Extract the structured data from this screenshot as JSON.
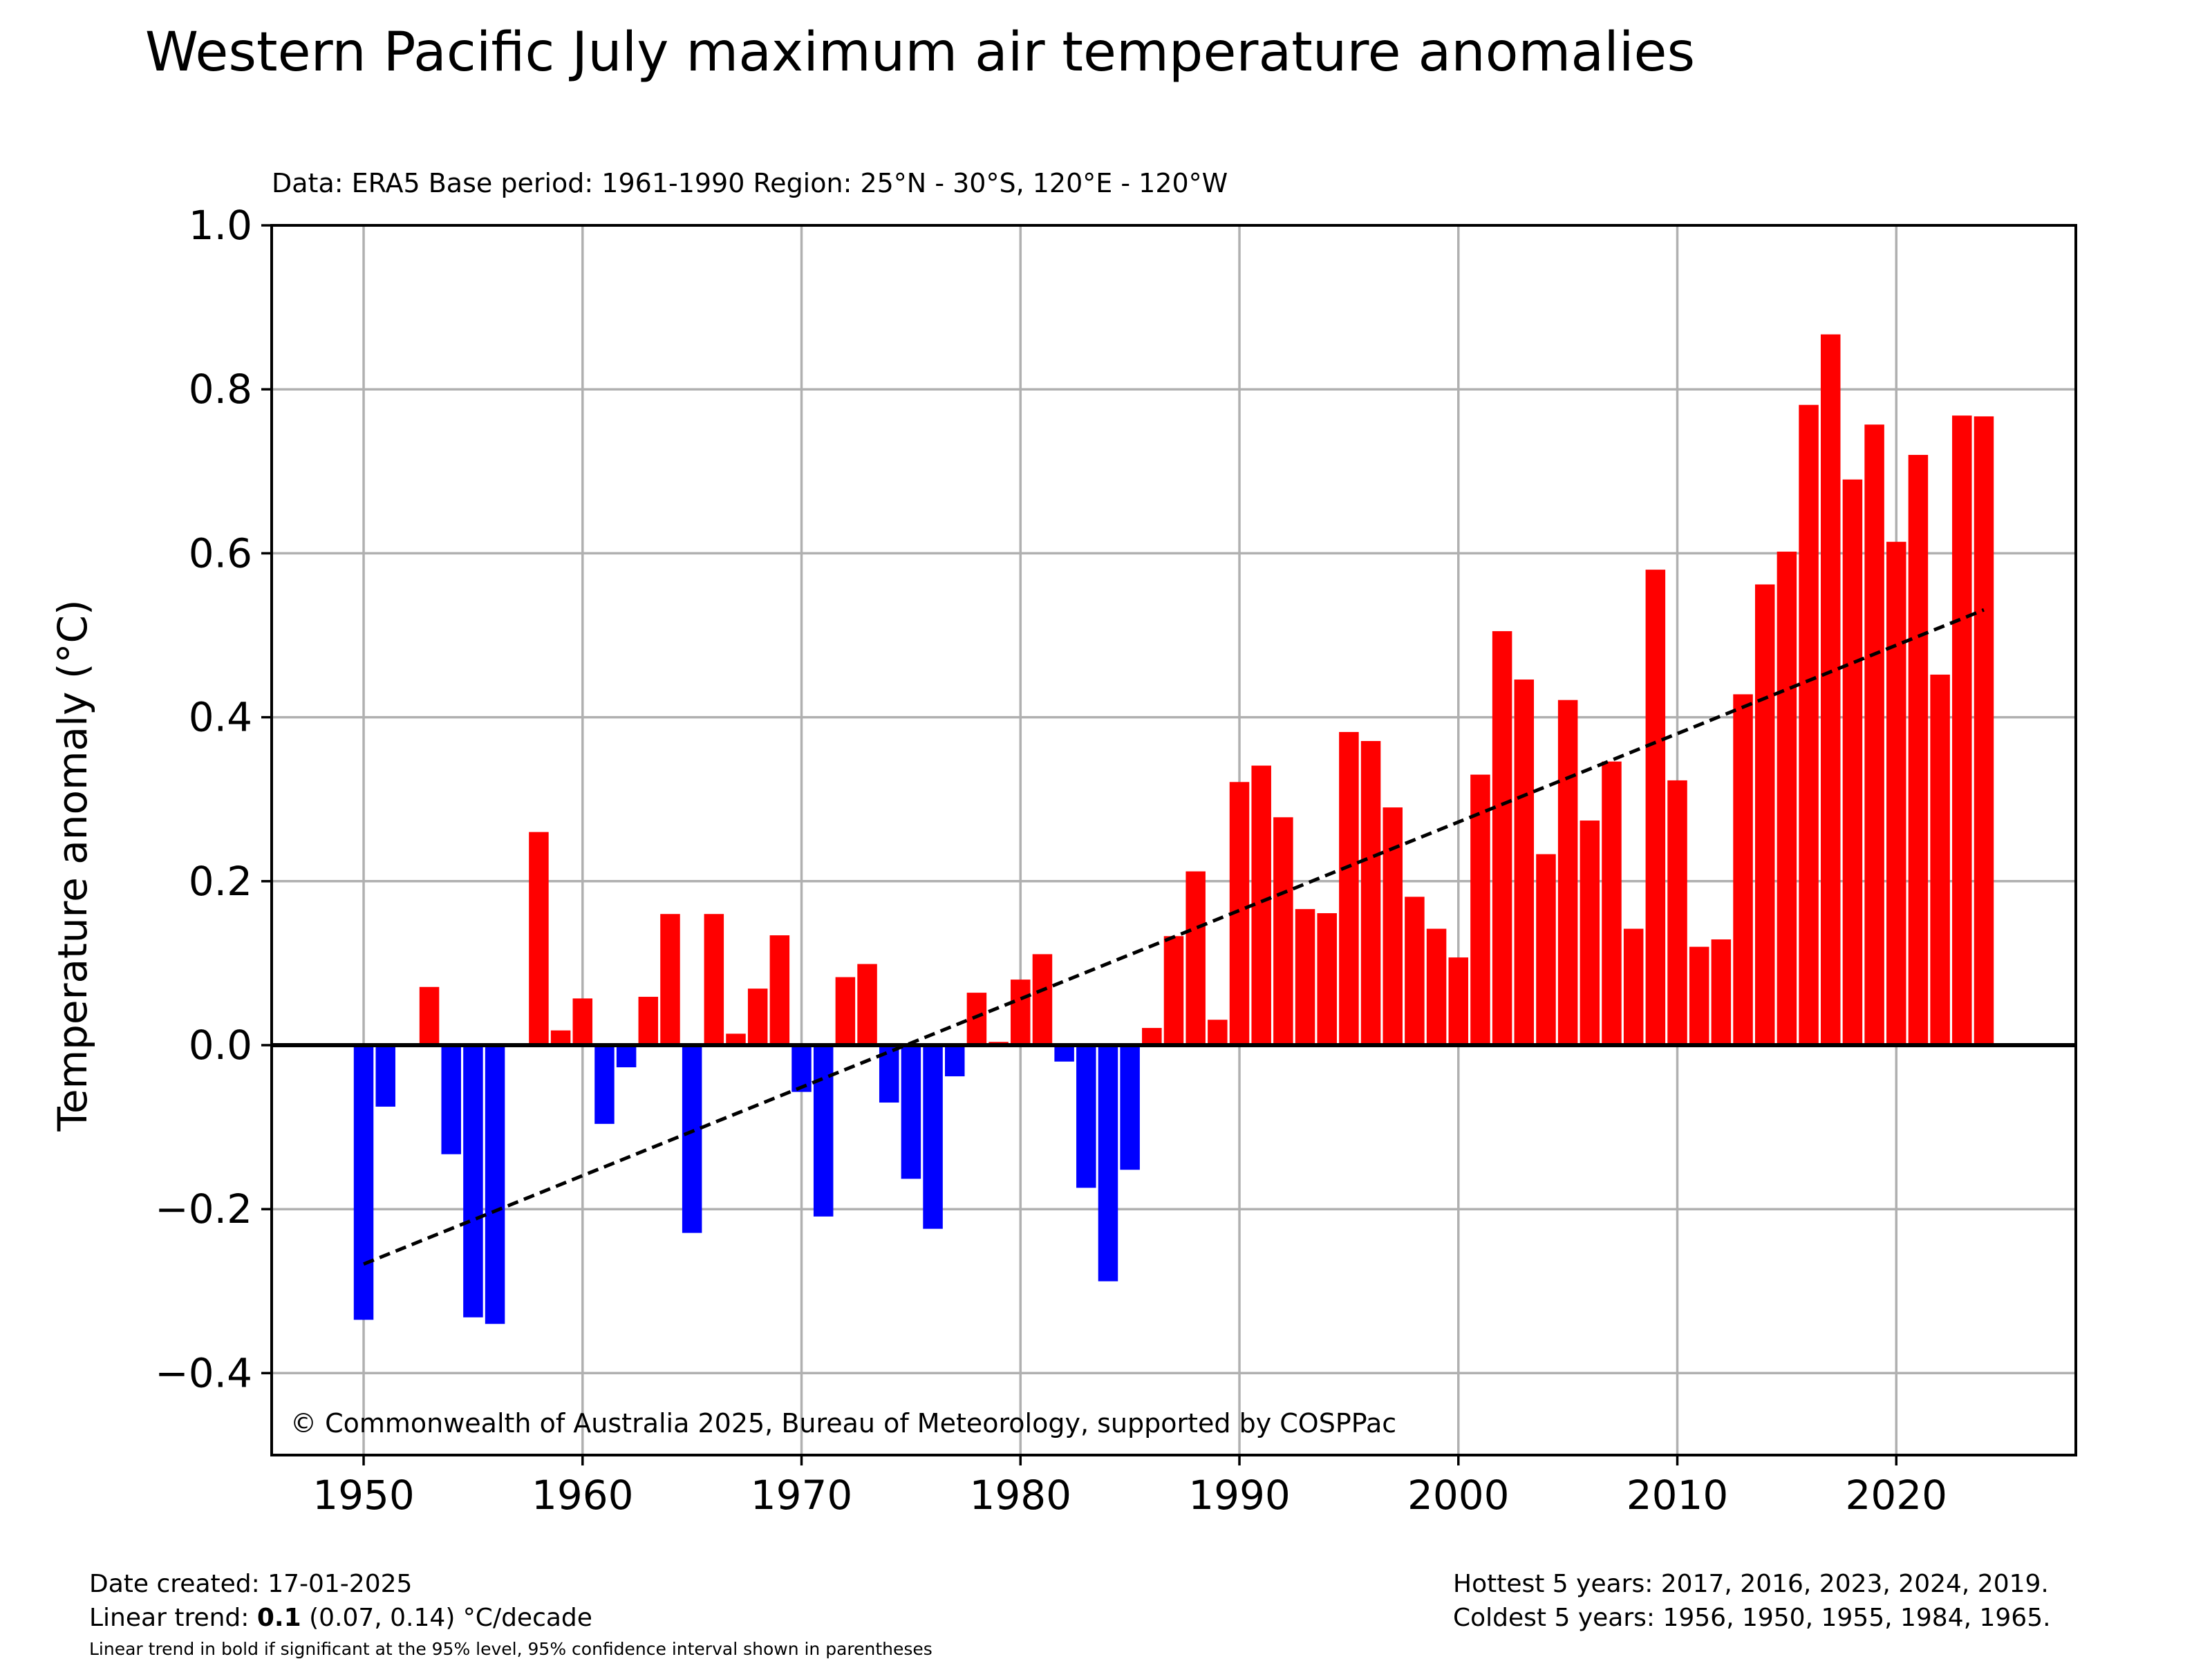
{
  "chart_data": {
    "type": "bar",
    "title": "Western Pacific July maximum air temperature anomalies",
    "subtitle": "Data: ERA5  Base period: 1961-1990  Region: 25°N - 30°S, 120°E - 120°W",
    "xlabel": "",
    "ylabel": "Temperature anomaly (°C)",
    "xlim": [
      1945.8,
      2028.2
    ],
    "ylim": [
      -0.5,
      1.0
    ],
    "x_ticks": [
      1950,
      1960,
      1970,
      1980,
      1990,
      2000,
      2010,
      2020
    ],
    "y_ticks": [
      -0.4,
      -0.2,
      0.0,
      0.2,
      0.4,
      0.6,
      0.8,
      1.0
    ],
    "y_tick_labels": [
      "−0.4",
      "−0.2",
      "0.0",
      "0.2",
      "0.4",
      "0.6",
      "0.8",
      "1.0"
    ],
    "grid": true,
    "colors": {
      "positive": "#ff0000",
      "negative": "#0000ff",
      "trend": "#000000"
    },
    "years": [
      1950,
      1951,
      1952,
      1953,
      1954,
      1955,
      1956,
      1957,
      1958,
      1959,
      1960,
      1961,
      1962,
      1963,
      1964,
      1965,
      1966,
      1967,
      1968,
      1969,
      1970,
      1971,
      1972,
      1973,
      1974,
      1975,
      1976,
      1977,
      1978,
      1979,
      1980,
      1981,
      1982,
      1983,
      1984,
      1985,
      1986,
      1987,
      1988,
      1989,
      1990,
      1991,
      1992,
      1993,
      1994,
      1995,
      1996,
      1997,
      1998,
      1999,
      2000,
      2001,
      2002,
      2003,
      2004,
      2005,
      2006,
      2007,
      2008,
      2009,
      2010,
      2011,
      2012,
      2013,
      2014,
      2015,
      2016,
      2017,
      2018,
      2019,
      2020,
      2021,
      2022,
      2023,
      2024
    ],
    "values": [
      -0.335,
      -0.075,
      0.0,
      0.071,
      -0.133,
      -0.332,
      -0.34,
      0.0,
      0.26,
      0.018,
      0.057,
      -0.096,
      -0.027,
      0.059,
      0.16,
      -0.229,
      0.16,
      0.014,
      0.069,
      0.134,
      -0.057,
      -0.209,
      0.083,
      0.099,
      -0.07,
      -0.163,
      -0.224,
      -0.038,
      0.064,
      0.004,
      0.08,
      0.111,
      -0.02,
      -0.174,
      -0.288,
      -0.152,
      0.021,
      0.133,
      0.212,
      0.031,
      0.321,
      0.341,
      0.278,
      0.166,
      0.161,
      0.382,
      0.371,
      0.29,
      0.181,
      0.142,
      0.107,
      0.33,
      0.505,
      0.446,
      0.233,
      0.421,
      0.274,
      0.346,
      0.142,
      0.58,
      0.323,
      0.12,
      0.129,
      0.428,
      0.562,
      0.602,
      0.781,
      0.867,
      0.69,
      0.757,
      0.614,
      0.72,
      0.452,
      0.768,
      0.767
    ],
    "trend": {
      "x": [
        1950,
        2024
      ],
      "y": [
        -0.267,
        0.531
      ]
    },
    "annotation": "© Commonwealth of Australia 2025, Bureau of Meteorology, supported by COSPPac"
  },
  "footer": {
    "date_created": "Date created: 17-01-2025",
    "trend_prefix": "Linear trend: ",
    "trend_value": "0.1",
    "trend_suffix": " (0.07, 0.14) °C/decade",
    "trend_note": "Linear trend in bold if significant at the 95% level, 95% confidence interval shown in parentheses",
    "hottest": "Hottest 5 years: 2017, 2016, 2023, 2024, 2019.",
    "coldest": "Coldest 5 years: 1956, 1950, 1955, 1984, 1965."
  }
}
